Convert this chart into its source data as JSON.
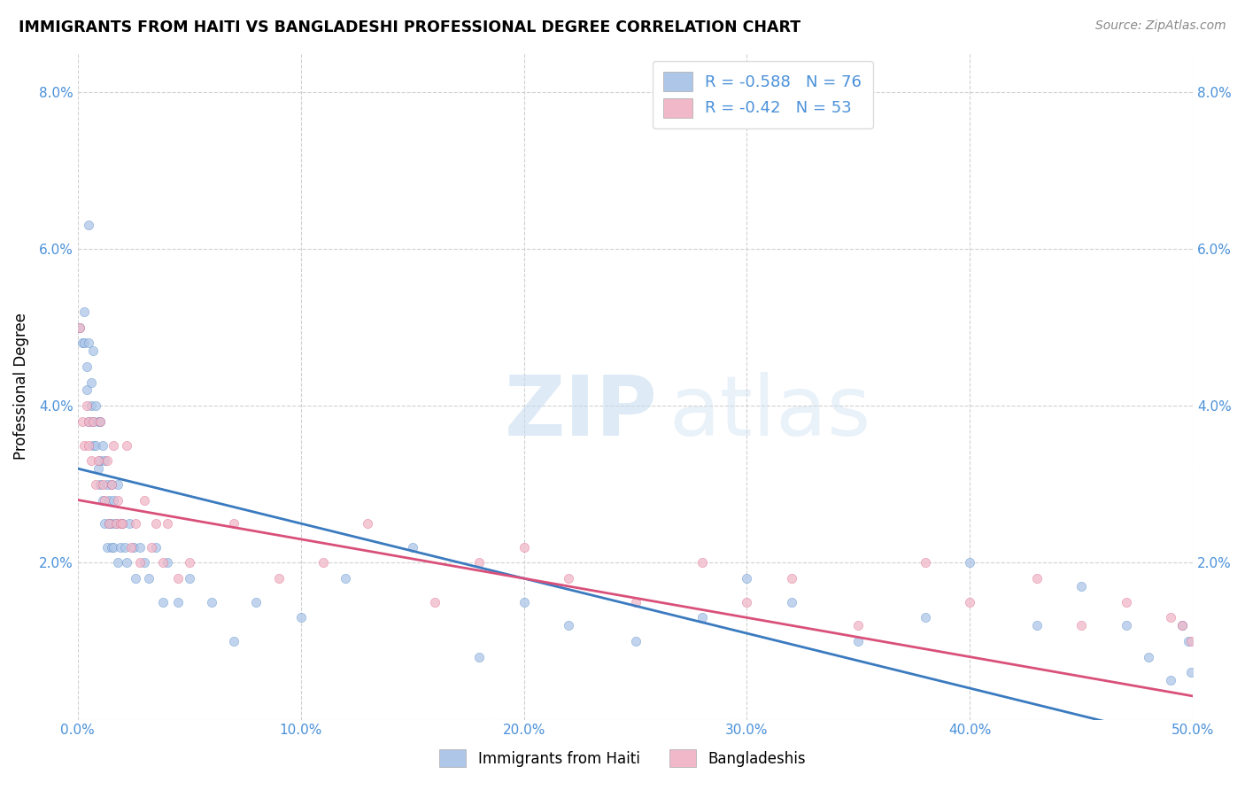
{
  "title": "IMMIGRANTS FROM HAITI VS BANGLADESHI PROFESSIONAL DEGREE CORRELATION CHART",
  "source": "Source: ZipAtlas.com",
  "ylabel": "Professional Degree",
  "xlim": [
    0.0,
    0.5
  ],
  "ylim": [
    0.0,
    0.085
  ],
  "x_ticks": [
    0.0,
    0.1,
    0.2,
    0.3,
    0.4,
    0.5
  ],
  "x_tick_labels": [
    "0.0%",
    "10.0%",
    "20.0%",
    "30.0%",
    "40.0%",
    "50.0%"
  ],
  "y_ticks": [
    0.0,
    0.02,
    0.04,
    0.06,
    0.08
  ],
  "y_tick_labels": [
    "",
    "2.0%",
    "4.0%",
    "6.0%",
    "8.0%"
  ],
  "haiti_color": "#aec6e8",
  "haiti_line_color": "#3a7abf",
  "bangladeshi_color": "#f0b8c8",
  "bangladeshi_line_color": "#d9507a",
  "tick_color": "#4a90d9",
  "haiti_R": -0.588,
  "haiti_N": 76,
  "bangladeshi_R": -0.42,
  "bangladeshi_N": 53,
  "watermark_zip": "ZIP",
  "watermark_atlas": "atlas",
  "background_color": "#ffffff",
  "grid_color": "#cccccc",
  "haiti_line_y_start": 0.032,
  "haiti_line_y_end": -0.003,
  "bangladeshi_line_y_start": 0.028,
  "bangladeshi_line_y_end": 0.003,
  "haiti_scatter_x": [
    0.001,
    0.002,
    0.003,
    0.003,
    0.004,
    0.004,
    0.005,
    0.005,
    0.005,
    0.006,
    0.006,
    0.007,
    0.007,
    0.007,
    0.008,
    0.008,
    0.009,
    0.009,
    0.01,
    0.01,
    0.01,
    0.011,
    0.011,
    0.012,
    0.012,
    0.013,
    0.013,
    0.014,
    0.014,
    0.015,
    0.015,
    0.015,
    0.016,
    0.016,
    0.017,
    0.018,
    0.018,
    0.019,
    0.02,
    0.021,
    0.022,
    0.023,
    0.025,
    0.026,
    0.028,
    0.03,
    0.032,
    0.035,
    0.038,
    0.04,
    0.045,
    0.05,
    0.06,
    0.07,
    0.08,
    0.1,
    0.12,
    0.15,
    0.18,
    0.2,
    0.22,
    0.25,
    0.28,
    0.3,
    0.32,
    0.35,
    0.38,
    0.4,
    0.43,
    0.45,
    0.47,
    0.48,
    0.49,
    0.495,
    0.498,
    0.499
  ],
  "haiti_scatter_y": [
    0.05,
    0.048,
    0.048,
    0.052,
    0.045,
    0.042,
    0.063,
    0.048,
    0.038,
    0.043,
    0.04,
    0.047,
    0.038,
    0.035,
    0.04,
    0.035,
    0.038,
    0.032,
    0.038,
    0.033,
    0.03,
    0.035,
    0.028,
    0.033,
    0.025,
    0.03,
    0.022,
    0.028,
    0.025,
    0.03,
    0.025,
    0.022,
    0.028,
    0.022,
    0.025,
    0.03,
    0.02,
    0.022,
    0.025,
    0.022,
    0.02,
    0.025,
    0.022,
    0.018,
    0.022,
    0.02,
    0.018,
    0.022,
    0.015,
    0.02,
    0.015,
    0.018,
    0.015,
    0.01,
    0.015,
    0.013,
    0.018,
    0.022,
    0.008,
    0.015,
    0.012,
    0.01,
    0.013,
    0.018,
    0.015,
    0.01,
    0.013,
    0.02,
    0.012,
    0.017,
    0.012,
    0.008,
    0.005,
    0.012,
    0.01,
    0.006
  ],
  "bangladeshi_scatter_x": [
    0.001,
    0.002,
    0.003,
    0.004,
    0.005,
    0.005,
    0.006,
    0.007,
    0.008,
    0.009,
    0.01,
    0.011,
    0.012,
    0.013,
    0.014,
    0.015,
    0.016,
    0.017,
    0.018,
    0.019,
    0.02,
    0.022,
    0.024,
    0.026,
    0.028,
    0.03,
    0.033,
    0.035,
    0.038,
    0.04,
    0.045,
    0.05,
    0.07,
    0.09,
    0.11,
    0.13,
    0.16,
    0.18,
    0.2,
    0.22,
    0.25,
    0.28,
    0.3,
    0.32,
    0.35,
    0.38,
    0.4,
    0.43,
    0.45,
    0.47,
    0.49,
    0.495,
    0.499
  ],
  "bangladeshi_scatter_y": [
    0.05,
    0.038,
    0.035,
    0.04,
    0.038,
    0.035,
    0.033,
    0.038,
    0.03,
    0.033,
    0.038,
    0.03,
    0.028,
    0.033,
    0.025,
    0.03,
    0.035,
    0.025,
    0.028,
    0.025,
    0.025,
    0.035,
    0.022,
    0.025,
    0.02,
    0.028,
    0.022,
    0.025,
    0.02,
    0.025,
    0.018,
    0.02,
    0.025,
    0.018,
    0.02,
    0.025,
    0.015,
    0.02,
    0.022,
    0.018,
    0.015,
    0.02,
    0.015,
    0.018,
    0.012,
    0.02,
    0.015,
    0.018,
    0.012,
    0.015,
    0.013,
    0.012,
    0.01
  ]
}
